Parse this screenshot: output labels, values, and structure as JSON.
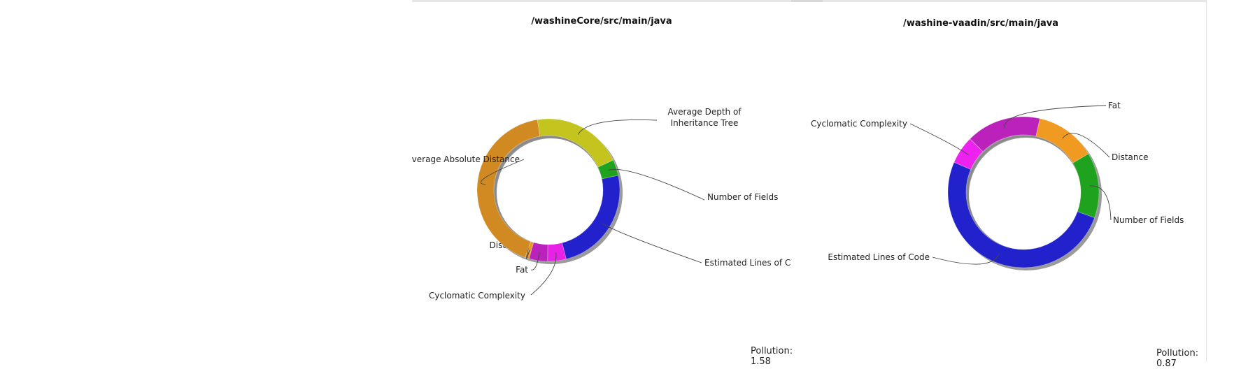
{
  "chart_data": [
    {
      "type": "pie",
      "title": "/washineCore/src/main/java",
      "footer": "Pollution: 1.58",
      "slices": [
        {
          "label": "Average Depth of\nInheritance Tree",
          "value": 20.6,
          "color": "#c4c41f"
        },
        {
          "label": "Number of Fields",
          "value": 3.6,
          "color": "#1fa31f"
        },
        {
          "label": "Estimated Lines of Co",
          "value": 24.3,
          "color": "#2222cc"
        },
        {
          "label": "Cyclomatic Complexity",
          "value": 4.2,
          "color": "#e622e6"
        },
        {
          "label": "Fat",
          "value": 4.2,
          "color": "#bb22bb"
        },
        {
          "label": "Distance",
          "value": 0.9,
          "color": "#e59a2a"
        },
        {
          "label": "Average Absolute Distance",
          "value": 42.2,
          "color": "#d18a22"
        }
      ]
    },
    {
      "type": "pie",
      "title": "/washine-vaadin/src/main/java",
      "footer": "Pollution: 0.87",
      "slices": [
        {
          "label": "Fat",
          "value": 16,
          "color": "#bb22bb"
        },
        {
          "label": "Distance",
          "value": 13,
          "color": "#f09a22"
        },
        {
          "label": "Number of Fields",
          "value": 14,
          "color": "#1fa31f"
        },
        {
          "label": "Estimated Lines of Code",
          "value": 51,
          "color": "#2222cc"
        },
        {
          "label": "Cyclomatic Complexity",
          "value": 6,
          "color": "#ee22ee"
        }
      ]
    }
  ]
}
